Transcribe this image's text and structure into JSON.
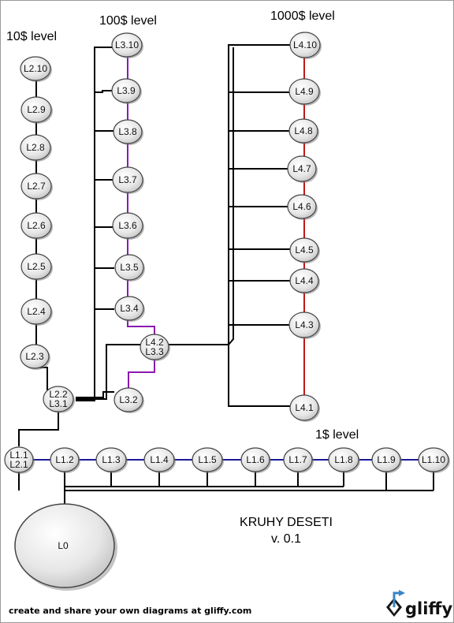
{
  "title": {
    "line1": "KRUHY DESETI",
    "line2": "v. 0.1"
  },
  "level_labels": {
    "l1": "1$ level",
    "l2": "10$ level",
    "l3": "100$ level",
    "l4": "1000$ level"
  },
  "root_node": {
    "label": "L0"
  },
  "nodes": {
    "l1": [
      [
        "L1.1",
        "L2.1"
      ],
      [
        "L1.2"
      ],
      [
        "L1.3"
      ],
      [
        "L1.4"
      ],
      [
        "L1.5"
      ],
      [
        "L1.6"
      ],
      [
        "L1.7"
      ],
      [
        "L1.8"
      ],
      [
        "L1.9"
      ],
      [
        "L1.10"
      ]
    ],
    "l2": [
      [
        "L2.2",
        "L3.1"
      ],
      [
        "L2.3"
      ],
      [
        "L2.4"
      ],
      [
        "L2.5"
      ],
      [
        "L2.6"
      ],
      [
        "L2.7"
      ],
      [
        "L2.8"
      ],
      [
        "L2.9"
      ],
      [
        "L2.10"
      ]
    ],
    "l3": [
      [
        "L3.2"
      ],
      [
        "L4.2",
        "L3.3"
      ],
      [
        "L3.4"
      ],
      [
        "L3.5"
      ],
      [
        "L3.6"
      ],
      [
        "L3.7"
      ],
      [
        "L3.8"
      ],
      [
        "L3.9"
      ],
      [
        "L3.10"
      ]
    ],
    "l4": [
      [
        "L4.1"
      ],
      [
        "L4.3"
      ],
      [
        "L4.4"
      ],
      [
        "L4.5"
      ],
      [
        "L4.6"
      ],
      [
        "L4.7"
      ],
      [
        "L4.8"
      ],
      [
        "L4.9"
      ],
      [
        "L4.10"
      ]
    ]
  },
  "colors": {
    "l1_chain": "#1a1a9a",
    "l3_chain": "#8a1ab0",
    "l4_chain": "#c01818",
    "connector": "#000000"
  },
  "footer": {
    "text": "create and share your own diagrams at gliffy.com",
    "brand": "gliffy",
    "logo_icon": "gliffy-logo-icon"
  }
}
